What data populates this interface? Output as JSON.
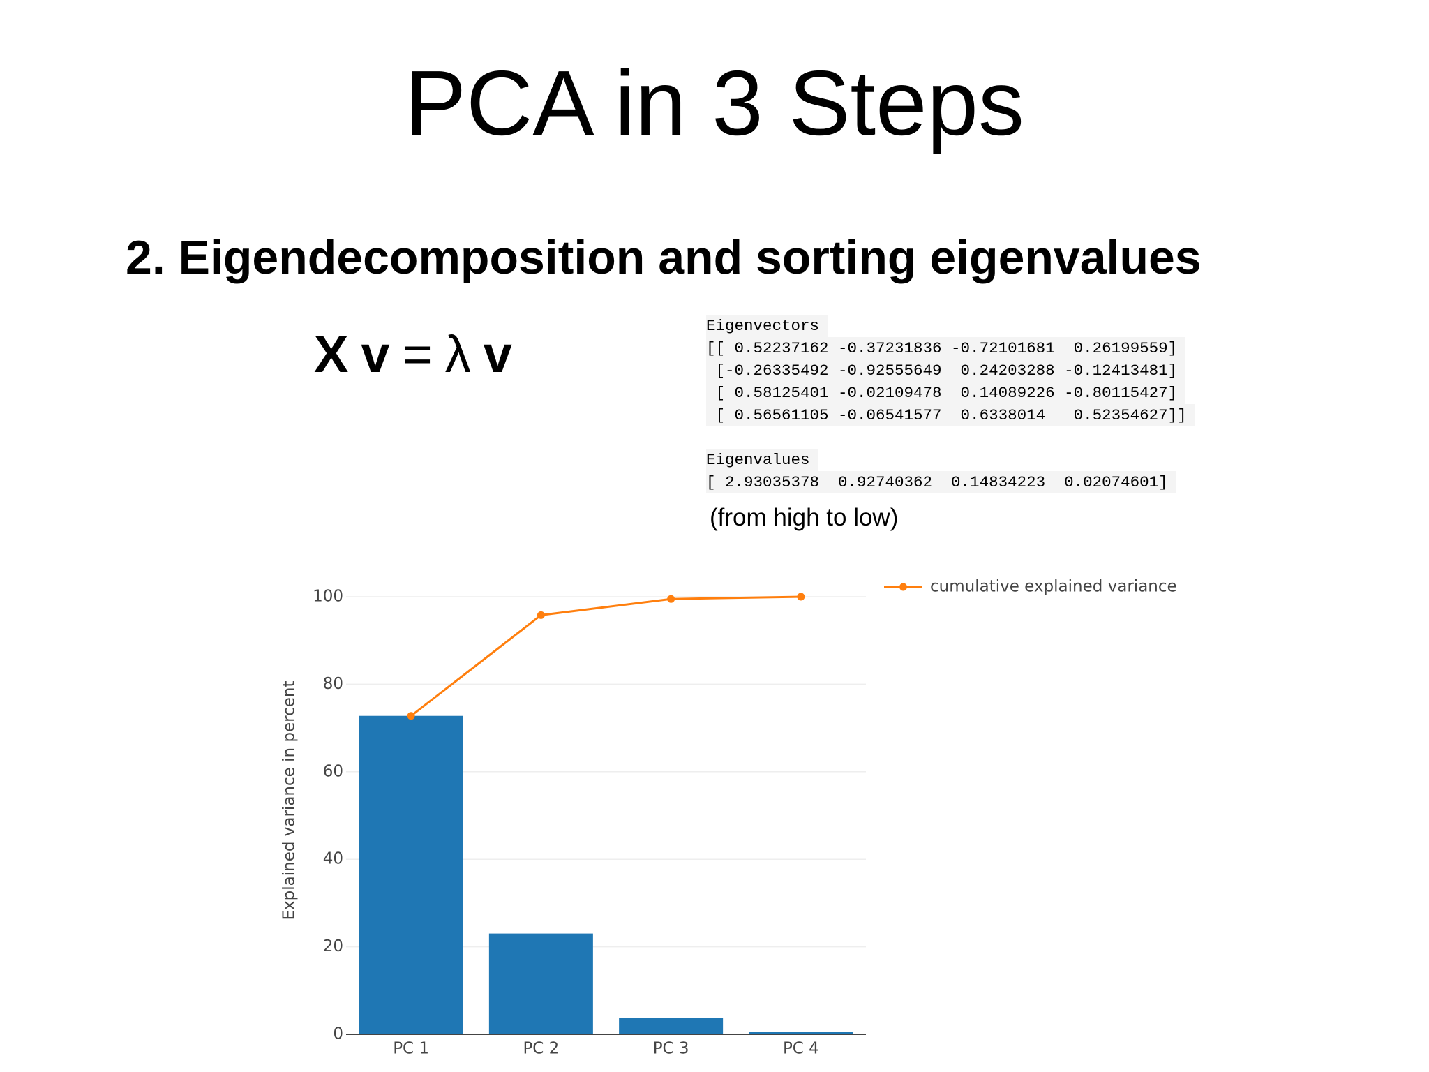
{
  "title": "PCA in 3 Steps",
  "heading": "2. Eigendecomposition and sorting eigenvalues",
  "equation": [
    "X",
    "v",
    "=",
    "λ",
    "v"
  ],
  "eigenvectors": {
    "label": "Eigenvectors",
    "lines": [
      "[[ 0.52237162 -0.37231836 -0.72101681  0.26199559]",
      " [-0.26335492 -0.92555649  0.24203288 -0.12413481]",
      " [ 0.58125401 -0.02109478  0.14089226 -0.80115427]",
      " [ 0.56561105 -0.06541577  0.6338014   0.52354627]]"
    ]
  },
  "eigenvalues": {
    "label": "Eigenvalues",
    "lines": [
      "[ 2.93035378  0.92740362  0.14834223  0.02074601]"
    ]
  },
  "note": "(from high to low)",
  "chart_data": {
    "type": "bar",
    "ylabel": "Explained variance in percent",
    "categories": [
      "PC 1",
      "PC 2",
      "PC 3",
      "PC 4"
    ],
    "values": [
      72.77,
      23.03,
      3.68,
      0.52
    ],
    "color": "#1f77b4",
    "series": [
      {
        "type": "line",
        "name": "cumulative explained variance",
        "color": "#ff7f0e",
        "values": [
          72.77,
          95.8,
          99.48,
          100
        ]
      }
    ],
    "ylim": [
      0,
      100
    ],
    "yticks": [
      0,
      20,
      40,
      60,
      80,
      100
    ],
    "grid": true,
    "legend": "top-right"
  }
}
